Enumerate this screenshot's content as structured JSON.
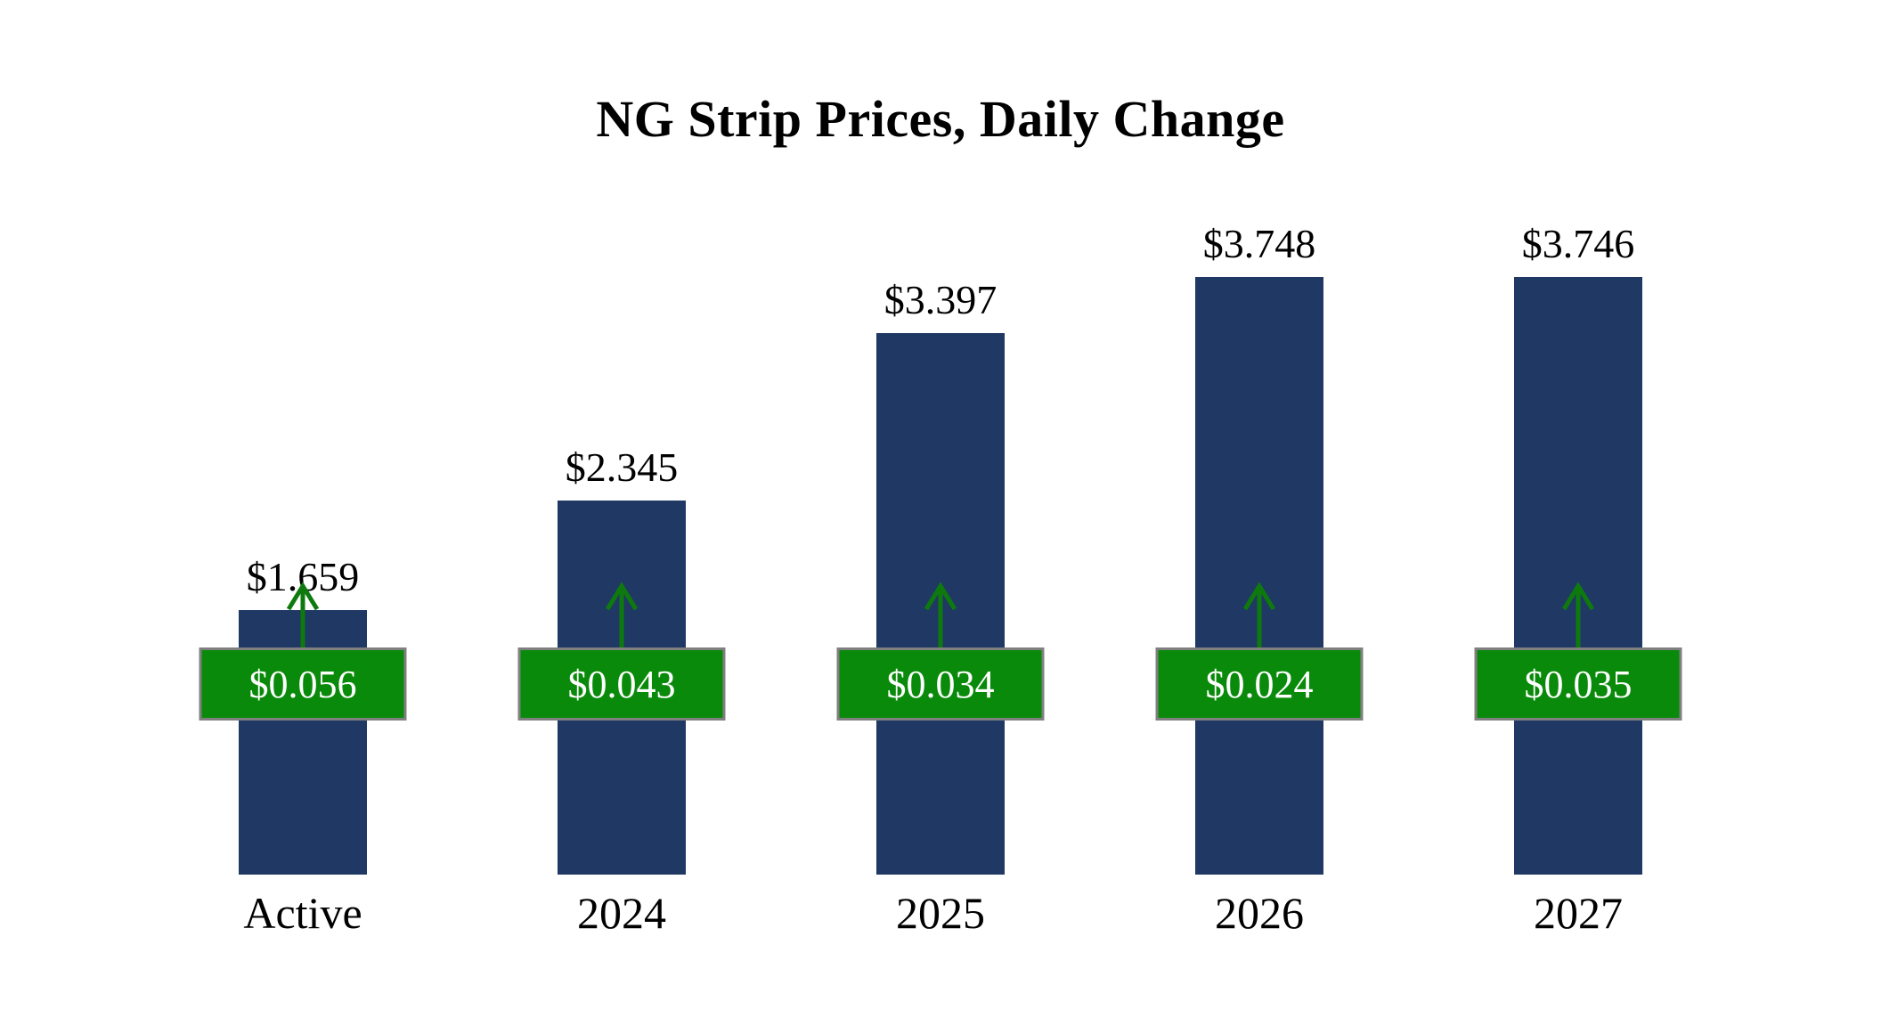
{
  "title": "NG Strip Prices, Daily Change",
  "chart_data": {
    "type": "bar",
    "title": "NG Strip Prices, Daily Change",
    "categories": [
      "Active",
      "2024",
      "2025",
      "2026",
      "2027"
    ],
    "series": [
      {
        "name": "Strip Price",
        "values": [
          1.659,
          2.345,
          3.397,
          3.748,
          3.746
        ]
      },
      {
        "name": "Daily Change",
        "values": [
          0.056,
          0.043,
          0.034,
          0.024,
          0.035
        ]
      }
    ],
    "value_labels": [
      "$1.659",
      "$2.345",
      "$3.397",
      "$3.748",
      "$3.746"
    ],
    "change_labels": [
      "$0.056",
      "$0.043",
      "$0.034",
      "$0.024",
      "$0.035"
    ],
    "change_direction": "up",
    "bar_color": "#1f3864",
    "change_badge_color": "#0a8a0a",
    "badge_border_color": "#808080",
    "arrow_color": "#0e7a0e",
    "ylim": [
      0,
      4.2
    ],
    "grid": false,
    "legend": false
  }
}
